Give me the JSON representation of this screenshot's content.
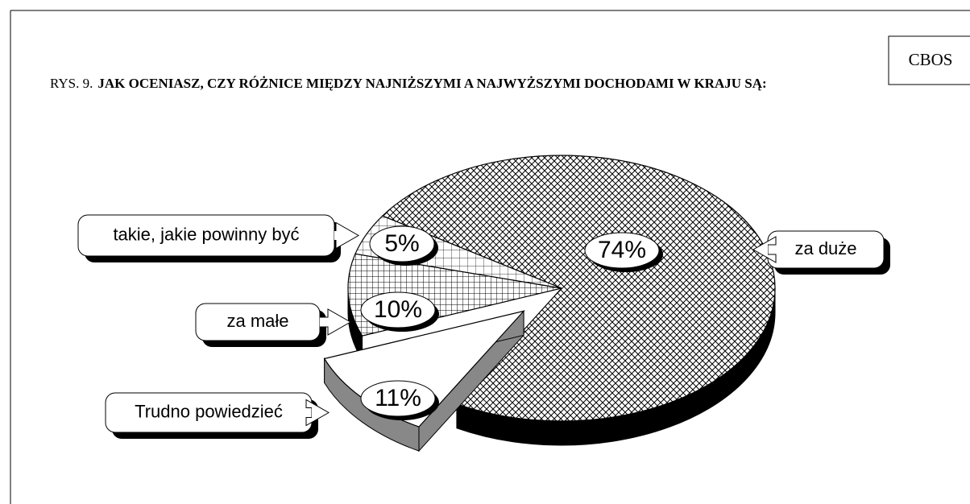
{
  "source": "CBOS",
  "chart_data": {
    "type": "pie",
    "figure_label": "RYS. 9.",
    "title": "JAK OCENIASZ, CZY RÓŻNICE MIĘDZY NAJNIŻSZYMI A NAJWYŻSZYMI DOCHODAMI W KRAJU SĄ:",
    "categories": [
      "za duże",
      "Trudno powiedzieć",
      "za małe",
      "takie, jakie powinny być"
    ],
    "values": [
      74,
      11,
      10,
      5
    ],
    "value_labels": [
      "74%",
      "11%",
      "10%",
      "5%"
    ],
    "exploded": [
      false,
      true,
      false,
      false
    ]
  }
}
